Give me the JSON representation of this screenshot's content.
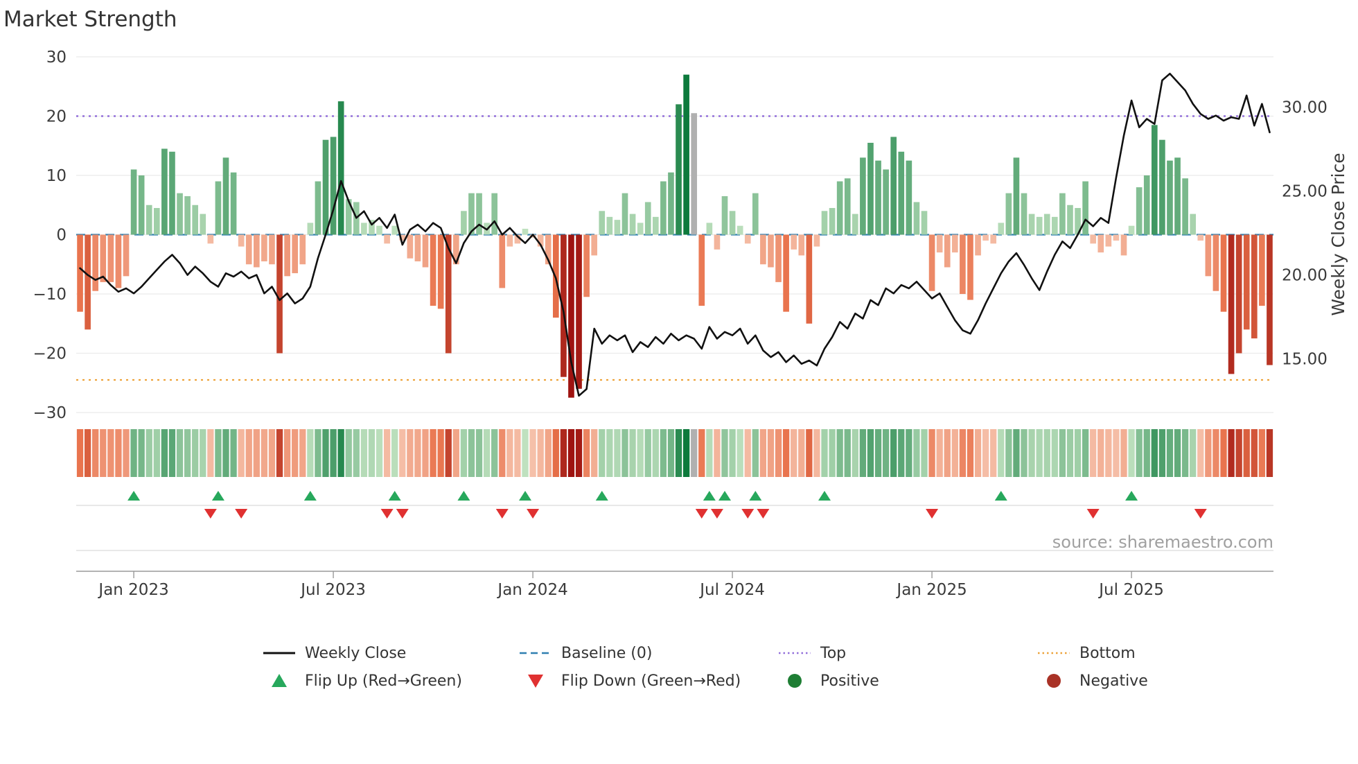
{
  "title": "Market Strength",
  "source": "source: sharemaestro.com",
  "chart_data": {
    "type": "bar+line",
    "title": "Market Strength",
    "x_ticks": [
      {
        "week": 7,
        "label": "Jan 2023"
      },
      {
        "week": 33,
        "label": "Jul 2023"
      },
      {
        "week": 59,
        "label": "Jan 2024"
      },
      {
        "week": 85,
        "label": "Jul 2024"
      },
      {
        "week": 111,
        "label": "Jan 2025"
      },
      {
        "week": 137,
        "label": "Jul 2025"
      }
    ],
    "left_axis": {
      "range": [
        -30,
        30
      ],
      "ticks": [
        30,
        20,
        10,
        0,
        -10,
        -20,
        -30
      ],
      "tick_labels": [
        "30",
        "20",
        "10",
        "0",
        "−10",
        "−20",
        "−30"
      ]
    },
    "right_axis": {
      "label": "Weekly Close Price",
      "range": [
        11.8,
        33.0
      ],
      "ticks": [
        30,
        25,
        20,
        15
      ],
      "tick_labels": [
        "30.00",
        "25.00",
        "20.00",
        "15.00"
      ]
    },
    "baseline": 0,
    "top_level": 20,
    "bottom_level": -24.5,
    "strength": [
      -13,
      -16,
      -9.5,
      -8,
      -8,
      -9,
      -7,
      11,
      10,
      5,
      4.5,
      14.5,
      14,
      7,
      6.5,
      5,
      3.5,
      -1.5,
      9,
      13,
      10.5,
      -2,
      -5,
      -5.5,
      -4.5,
      -5,
      -20,
      -7,
      -6.5,
      -5,
      2,
      9,
      16,
      16.5,
      22.5,
      6,
      5.5,
      2,
      2.5,
      1.5,
      -1.5,
      1.5,
      -1,
      -4,
      -4.5,
      -5.5,
      -12,
      -12.5,
      -20,
      -5,
      4,
      7,
      7,
      2,
      7,
      -9,
      -2,
      -1.5,
      1,
      -0.5,
      -2,
      -5,
      -14,
      -24,
      -27.5,
      -26,
      -10.5,
      -3.5,
      4,
      3,
      2.5,
      7,
      3.5,
      2,
      5.5,
      3,
      9,
      10.5,
      22,
      27,
      20.5,
      -12,
      2,
      -2.5,
      6.5,
      4,
      1.5,
      -1.5,
      7,
      -5,
      -5.5,
      -8,
      -13,
      -2.5,
      -3.5,
      -15,
      -2,
      4,
      4.5,
      9,
      9.5,
      3.5,
      13,
      15.5,
      12.5,
      11,
      16.5,
      14,
      12.5,
      5.5,
      4,
      -9.5,
      -3,
      -5.5,
      -3,
      -10,
      -11,
      -3.5,
      -1,
      -1.5,
      2,
      7,
      13,
      7,
      3.5,
      3,
      3.5,
      3,
      7,
      5,
      4.5,
      9,
      -1.5,
      -3,
      -2,
      -1,
      -3.5,
      1.5,
      8,
      10,
      18.5,
      16,
      12.5,
      13,
      9.5,
      3.5,
      -1,
      -7,
      -9.5,
      -13,
      -23.5,
      -20,
      -16,
      -17.5,
      -12,
      -22
    ],
    "weekly_close": [
      20.4,
      20.0,
      19.7,
      19.9,
      19.4,
      19.0,
      19.2,
      18.9,
      19.3,
      19.8,
      20.3,
      20.8,
      21.2,
      20.7,
      20.0,
      20.5,
      20.1,
      19.6,
      19.3,
      20.1,
      19.9,
      20.2,
      19.8,
      20.0,
      18.9,
      19.3,
      18.5,
      18.9,
      18.3,
      18.6,
      19.3,
      21.0,
      22.4,
      23.9,
      25.6,
      24.4,
      23.4,
      23.8,
      23.0,
      23.4,
      22.8,
      23.6,
      21.8,
      22.7,
      23.0,
      22.6,
      23.1,
      22.8,
      21.6,
      20.7,
      21.9,
      22.6,
      23.0,
      22.7,
      23.2,
      22.4,
      22.8,
      22.3,
      21.9,
      22.4,
      21.8,
      20.9,
      19.8,
      17.8,
      14.8,
      12.8,
      13.2,
      16.8,
      15.9,
      16.4,
      16.1,
      16.4,
      15.4,
      16.0,
      15.7,
      16.3,
      15.9,
      16.5,
      16.1,
      16.4,
      16.2,
      15.6,
      16.9,
      16.2,
      16.6,
      16.4,
      16.8,
      15.9,
      16.4,
      15.5,
      15.1,
      15.4,
      14.8,
      15.2,
      14.7,
      14.9,
      14.6,
      15.6,
      16.3,
      17.2,
      16.8,
      17.7,
      17.4,
      18.5,
      18.2,
      19.2,
      18.9,
      19.4,
      19.2,
      19.6,
      19.1,
      18.6,
      18.9,
      18.1,
      17.3,
      16.7,
      16.5,
      17.3,
      18.3,
      19.2,
      20.1,
      20.8,
      21.3,
      20.6,
      19.8,
      19.1,
      20.2,
      21.2,
      22.0,
      21.6,
      22.4,
      23.3,
      22.9,
      23.4,
      23.1,
      25.8,
      28.3,
      30.4,
      28.8,
      29.3,
      29.0,
      31.6,
      32.0,
      31.5,
      31.0,
      30.2,
      29.6,
      29.3,
      29.5,
      29.2,
      29.4,
      29.3,
      30.7,
      28.9,
      30.2,
      28.5
    ],
    "gray_bar_indices": [
      80
    ],
    "flip_up_weeks": [
      7,
      18,
      30,
      41,
      50,
      58,
      68,
      82,
      84,
      88,
      97,
      120,
      137
    ],
    "flip_down_weeks": [
      17,
      21,
      40,
      42,
      55,
      59,
      81,
      83,
      87,
      89,
      111,
      132,
      146
    ]
  },
  "legend": [
    {
      "label": "Weekly Close",
      "swatch": "line",
      "color": "#111111"
    },
    {
      "label": "Baseline (0)",
      "swatch": "dashed",
      "color": "#2f7fb0"
    },
    {
      "label": "Top",
      "swatch": "dotted",
      "color": "#9370db"
    },
    {
      "label": "Bottom",
      "swatch": "dotted",
      "color": "#eda33b"
    },
    {
      "label": "Flip Up (Red→Green)",
      "swatch": "triangle-up",
      "color": "#27a85c"
    },
    {
      "label": "Flip Down (Green→Red)",
      "swatch": "triangle-down",
      "color": "#e03131"
    },
    {
      "label": "Positive",
      "swatch": "dot",
      "color": "#1e7e34"
    },
    {
      "label": "Negative",
      "swatch": "dot",
      "color": "#a93226"
    }
  ],
  "colors": {
    "line": "#111111",
    "baseline": "#2f7fb0",
    "top": "#9370db",
    "bottom": "#eda33b",
    "pos_light": "#cde9c9",
    "pos_dark": "#0d7a3c",
    "neg_light": "#f6c3ad",
    "neg_mid": "#e8714a",
    "neg_dark": "#9e1310",
    "gray_bar": "#b0b0b0",
    "flip_up": "#27a85c",
    "flip_down": "#e03131",
    "grid": "#ebebeb",
    "axis_text": "#3a3a3a",
    "source_text": "#a0a0a0"
  }
}
